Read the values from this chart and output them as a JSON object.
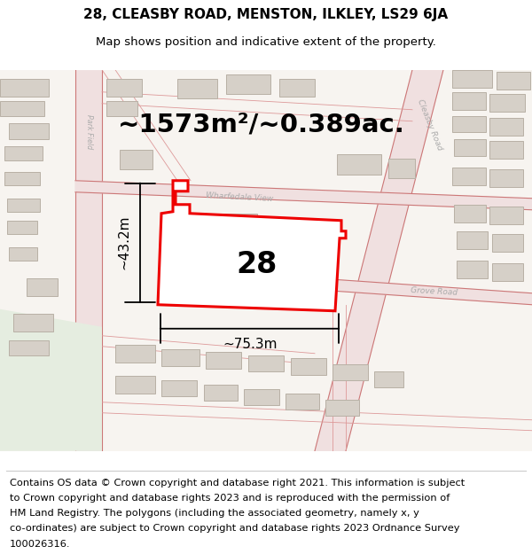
{
  "title": "28, CLEASBY ROAD, MENSTON, ILKLEY, LS29 6JA",
  "subtitle": "Map shows position and indicative extent of the property.",
  "area_text": "~1573m²/~0.389ac.",
  "width_label": "~75.3m",
  "height_label": "~43.2m",
  "property_number": "28",
  "footer_lines": [
    "Contains OS data © Crown copyright and database right 2021. This information is subject",
    "to Crown copyright and database rights 2023 and is reproduced with the permission of",
    "HM Land Registry. The polygons (including the associated geometry, namely x, y",
    "co-ordinates) are subject to Crown copyright and database rights 2023 Ordnance Survey",
    "100026316."
  ],
  "map_bg": "#f7f4f0",
  "property_fill": "#ffffff",
  "property_edge": "#ee0000",
  "property_lw": 2.2,
  "building_fill": "#d6d0c8",
  "building_edge": "#b8b0a5",
  "building_lw": 0.7,
  "road_fill": "#f0dada",
  "road_edge": "#e09090",
  "road_line_color": "#d08080",
  "road_lw": 0.9,
  "label_color": "#aaaaaa",
  "title_fontsize": 11,
  "subtitle_fontsize": 9.5,
  "area_fontsize": 21,
  "dim_label_fontsize": 11,
  "number_fontsize": 24,
  "footer_fontsize": 8.2,
  "green_area_color": "#e8f0e0"
}
